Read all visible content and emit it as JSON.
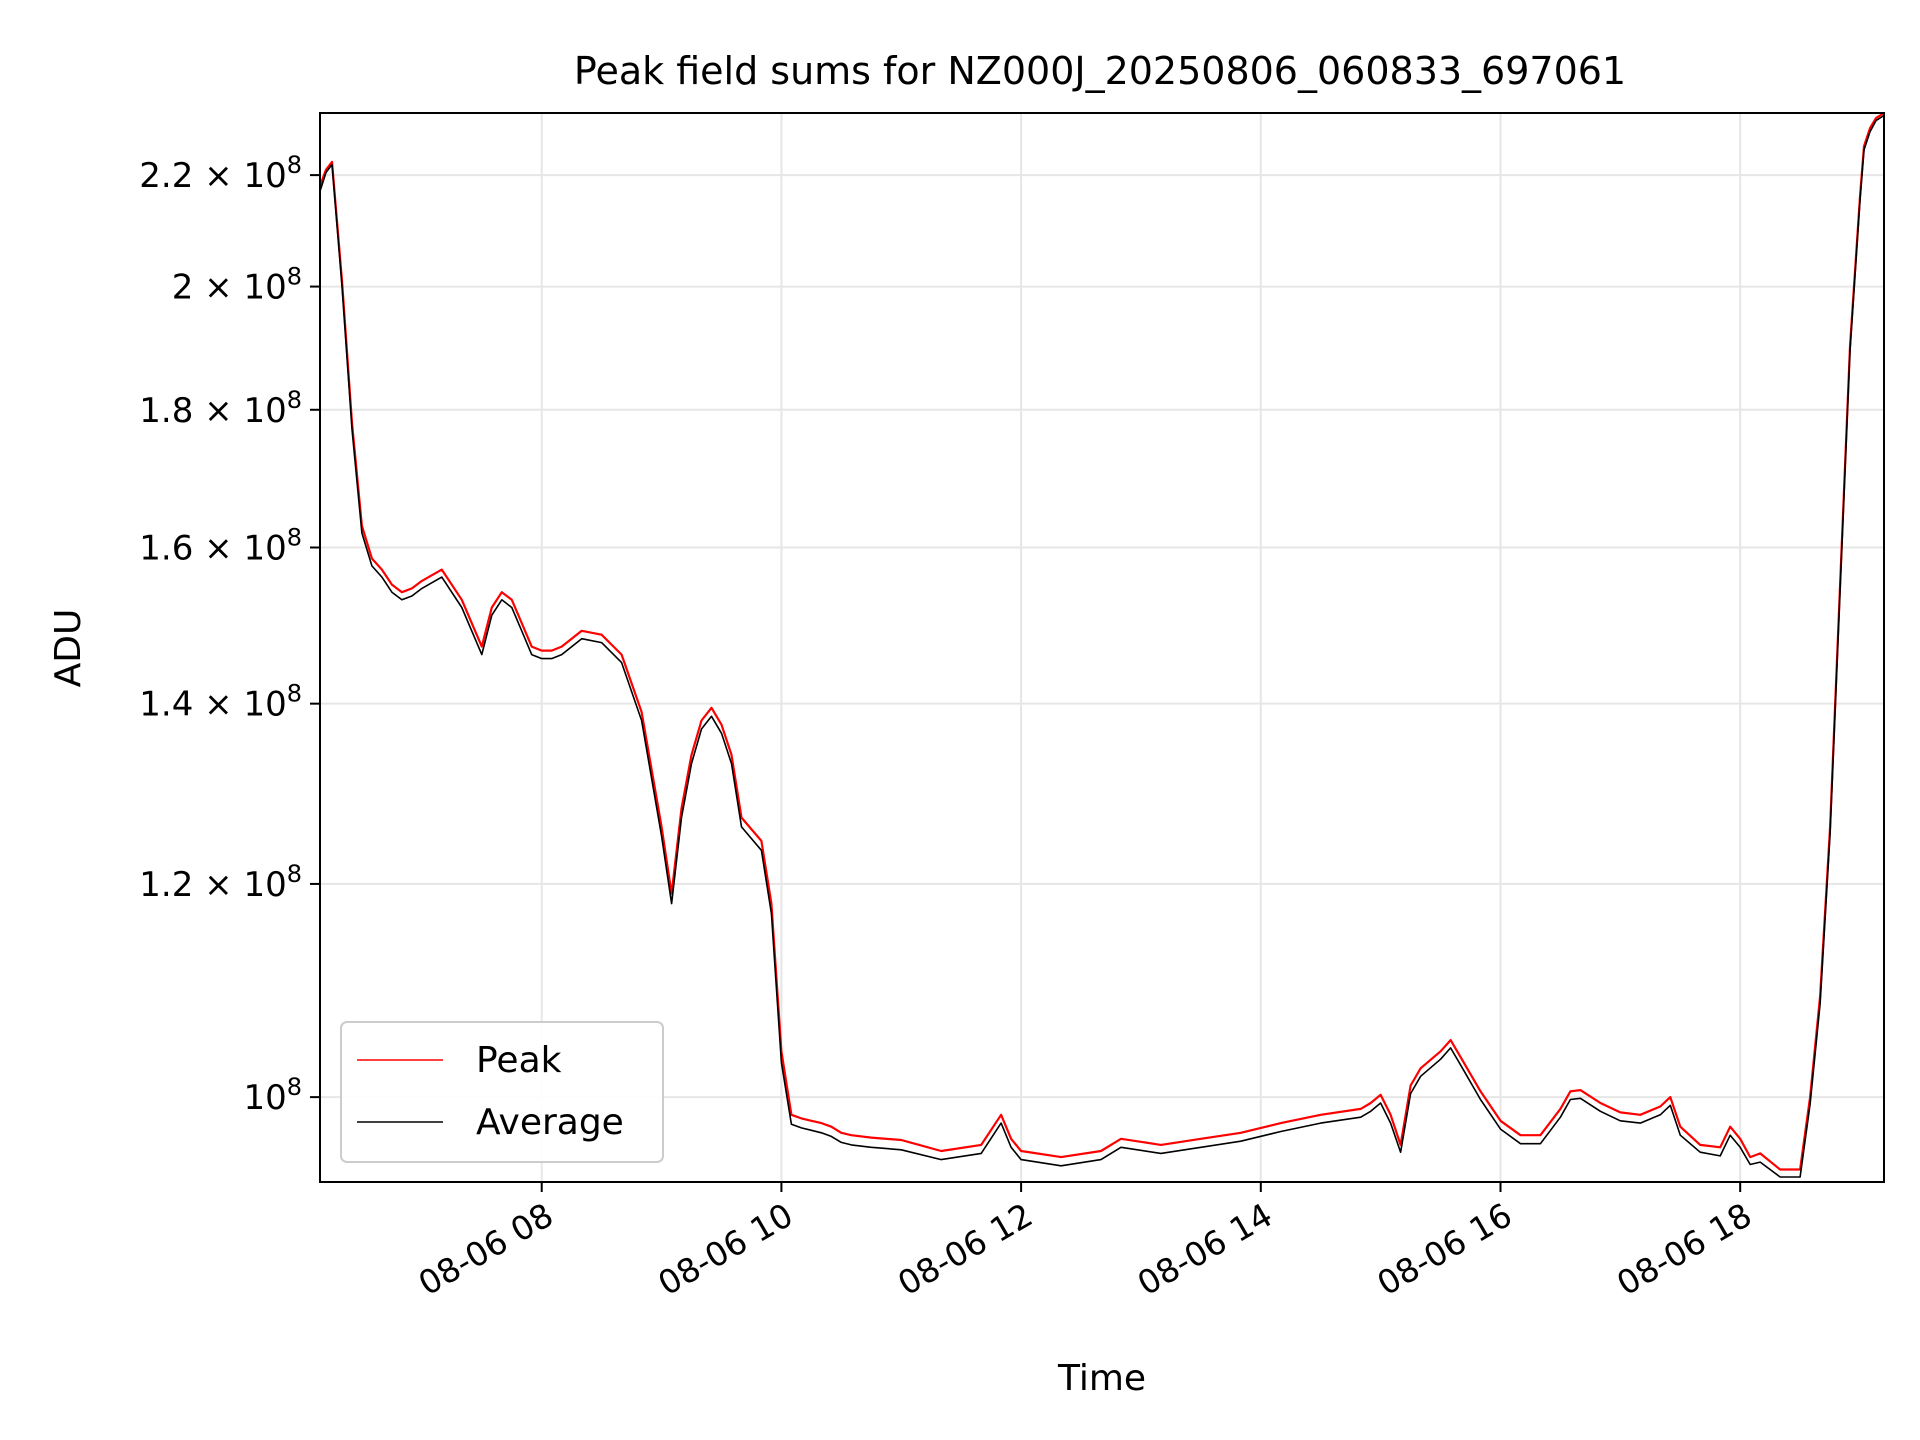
{
  "chart_data": {
    "type": "line",
    "title": "Peak field sums for NZ000J_20250806_060833_697061",
    "xlabel": "Time",
    "ylabel": "ADU",
    "xlim": [
      "08-06 06:09",
      "08-06 19:12"
    ],
    "ylim": [
      93000000,
      232000000
    ],
    "yscale": "log",
    "grid": true,
    "legend_position": "lower-left",
    "x_ticks": [
      "08-06 08",
      "08-06 10",
      "08-06 12",
      "08-06 14",
      "08-06 16",
      "08-06 18"
    ],
    "y_ticks": [
      {
        "value": 100000000,
        "base": "10",
        "exp": "8",
        "mant": ""
      },
      {
        "value": 120000000,
        "base": "1.2 × 10",
        "exp": "8",
        "mant": ""
      },
      {
        "value": 140000000,
        "base": "1.4 × 10",
        "exp": "8",
        "mant": ""
      },
      {
        "value": 160000000,
        "base": "1.6 × 10",
        "exp": "8",
        "mant": ""
      },
      {
        "value": 180000000,
        "base": "1.8 × 10",
        "exp": "8",
        "mant": ""
      },
      {
        "value": 200000000,
        "base": "2 × 10",
        "exp": "8",
        "mant": ""
      },
      {
        "value": 220000000,
        "base": "2.2 × 10",
        "exp": "8",
        "mant": ""
      }
    ],
    "x": [
      "08-06 06:09",
      "08-06 06:12",
      "08-06 06:15",
      "08-06 06:20",
      "08-06 06:25",
      "08-06 06:30",
      "08-06 06:35",
      "08-06 06:40",
      "08-06 06:45",
      "08-06 06:50",
      "08-06 06:55",
      "08-06 07:00",
      "08-06 07:10",
      "08-06 07:20",
      "08-06 07:30",
      "08-06 07:35",
      "08-06 07:40",
      "08-06 07:45",
      "08-06 07:50",
      "08-06 07:55",
      "08-06 08:00",
      "08-06 08:05",
      "08-06 08:10",
      "08-06 08:20",
      "08-06 08:30",
      "08-06 08:40",
      "08-06 08:50",
      "08-06 09:00",
      "08-06 09:05",
      "08-06 09:10",
      "08-06 09:15",
      "08-06 09:20",
      "08-06 09:25",
      "08-06 09:30",
      "08-06 09:35",
      "08-06 09:40",
      "08-06 09:50",
      "08-06 09:55",
      "08-06 10:00",
      "08-06 10:05",
      "08-06 10:10",
      "08-06 10:15",
      "08-06 10:20",
      "08-06 10:25",
      "08-06 10:30",
      "08-06 10:35",
      "08-06 10:45",
      "08-06 11:00",
      "08-06 11:20",
      "08-06 11:40",
      "08-06 11:50",
      "08-06 11:55",
      "08-06 12:00",
      "08-06 12:20",
      "08-06 12:40",
      "08-06 12:50",
      "08-06 13:10",
      "08-06 13:30",
      "08-06 13:50",
      "08-06 14:10",
      "08-06 14:30",
      "08-06 14:50",
      "08-06 14:55",
      "08-06 15:00",
      "08-06 15:05",
      "08-06 15:10",
      "08-06 15:15",
      "08-06 15:20",
      "08-06 15:30",
      "08-06 15:35",
      "08-06 15:40",
      "08-06 15:50",
      "08-06 16:00",
      "08-06 16:10",
      "08-06 16:20",
      "08-06 16:30",
      "08-06 16:35",
      "08-06 16:40",
      "08-06 16:50",
      "08-06 17:00",
      "08-06 17:10",
      "08-06 17:20",
      "08-06 17:25",
      "08-06 17:30",
      "08-06 17:40",
      "08-06 17:50",
      "08-06 17:55",
      "08-06 18:00",
      "08-06 18:05",
      "08-06 18:10",
      "08-06 18:20",
      "08-06 18:30",
      "08-06 18:35",
      "08-06 18:40",
      "08-06 18:45",
      "08-06 18:50",
      "08-06 18:55",
      "08-06 19:00",
      "08-06 19:02",
      "08-06 19:05",
      "08-06 19:08",
      "08-06 19:12"
    ],
    "series": [
      {
        "name": "Peak",
        "color": "#ff0000",
        "values": [
          218000000,
          221000000,
          222500000,
          201000000,
          178000000,
          163000000,
          158500000,
          157000000,
          155000000,
          154000000,
          154500000,
          155500000,
          157000000,
          153000000,
          147000000,
          152000000,
          154000000,
          153000000,
          150000000,
          147000000,
          146500000,
          146500000,
          147000000,
          149000000,
          148500000,
          146000000,
          139000000,
          126000000,
          119000000,
          128000000,
          134000000,
          138000000,
          139500000,
          137500000,
          134000000,
          127000000,
          124500000,
          118000000,
          104000000,
          98500000,
          98200000,
          98000000,
          97800000,
          97500000,
          97000000,
          96800000,
          96600000,
          96400000,
          95500000,
          96000000,
          98500000,
          96500000,
          95500000,
          95000000,
          95500000,
          96500000,
          96000000,
          96500000,
          97000000,
          97800000,
          98500000,
          99000000,
          99500000,
          100200000,
          98500000,
          96000000,
          101000000,
          102500000,
          104000000,
          105000000,
          103500000,
          100500000,
          98000000,
          96800000,
          96800000,
          99000000,
          100500000,
          100600000,
          99500000,
          98700000,
          98500000,
          99200000,
          100000000,
          97500000,
          96000000,
          95800000,
          97500000,
          96500000,
          95000000,
          95300000,
          94000000,
          94000000,
          100000000,
          109000000,
          126000000,
          155000000,
          190000000,
          216000000,
          225500000,
          229000000,
          231000000,
          232000000
        ]
      },
      {
        "name": "Average",
        "color": "#000000",
        "values": [
          217000000,
          220500000,
          222000000,
          200000000,
          177000000,
          162000000,
          157500000,
          156000000,
          154000000,
          153000000,
          153500000,
          154500000,
          156000000,
          152000000,
          146000000,
          151000000,
          153000000,
          152000000,
          149000000,
          146000000,
          145500000,
          145500000,
          146000000,
          148000000,
          147500000,
          145000000,
          138000000,
          125000000,
          118000000,
          127000000,
          133000000,
          137000000,
          138500000,
          136500000,
          133000000,
          126000000,
          123500000,
          117000000,
          103000000,
          97700000,
          97400000,
          97200000,
          97000000,
          96700000,
          96200000,
          96000000,
          95800000,
          95600000,
          94800000,
          95300000,
          97800000,
          95800000,
          94800000,
          94300000,
          94800000,
          95800000,
          95300000,
          95800000,
          96300000,
          97100000,
          97800000,
          98300000,
          98800000,
          99500000,
          97800000,
          95400000,
          100300000,
          101800000,
          103300000,
          104300000,
          102800000,
          99800000,
          97300000,
          96100000,
          96100000,
          98300000,
          99800000,
          99900000,
          98800000,
          98000000,
          97800000,
          98500000,
          99300000,
          96800000,
          95400000,
          95100000,
          96800000,
          95800000,
          94400000,
          94600000,
          93400000,
          93400000,
          99400000,
          108300000,
          125300000,
          154300000,
          189300000,
          215300000,
          224800000,
          228300000,
          230500000,
          231500000
        ]
      }
    ]
  }
}
